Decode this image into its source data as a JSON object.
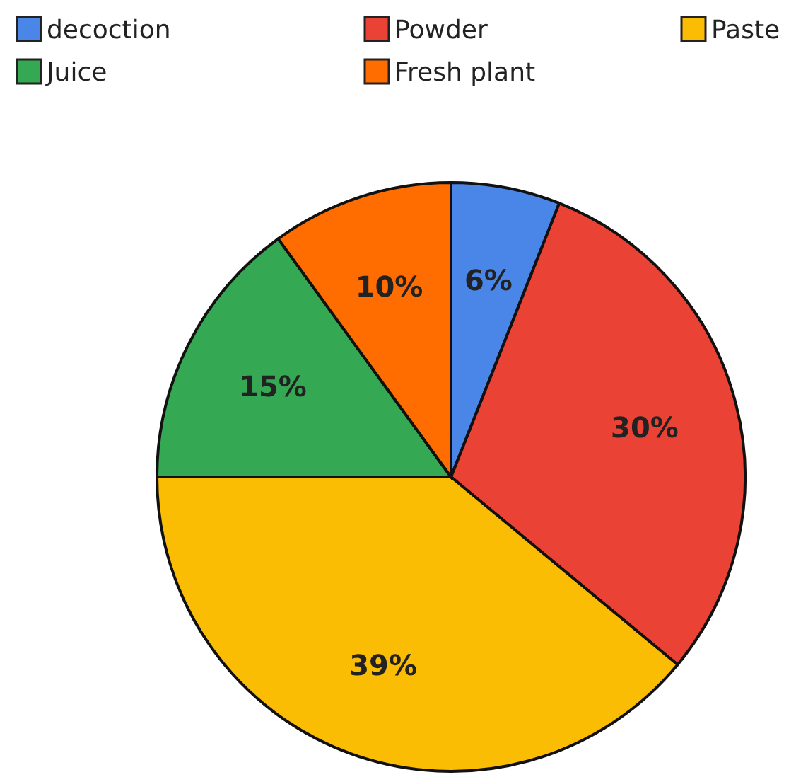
{
  "chart_data": {
    "type": "pie",
    "categories": [
      "decoction",
      "Powder",
      "Paste",
      "Juice",
      "Fresh plant"
    ],
    "values": [
      6,
      30,
      39,
      15,
      10
    ],
    "colors": [
      "#4a86e8",
      "#ea4335",
      "#fbbc04",
      "#34a853",
      "#ff6d01"
    ],
    "value_labels": [
      "6%",
      "30%",
      "39%",
      "15%",
      "10%"
    ],
    "legend": "top"
  }
}
